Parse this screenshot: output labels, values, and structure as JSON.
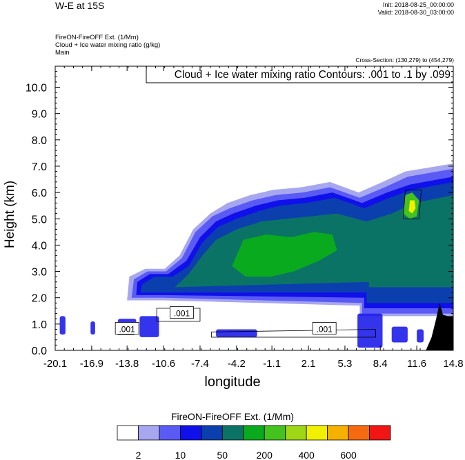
{
  "header": {
    "title": "W-E at 15S",
    "init": "Init: 2018-08-25_00:00:00",
    "valid": "Valid: 2018-08-30_03:00:00",
    "subtitle1": "FireON-FireOFF Ext.   (1/Mm)",
    "subtitle2": "Cloud + Ice water mixing ratio   (g/kg)",
    "subtitle3": "Main",
    "cross_section": "Cross-Section: (130,279) to (454,279)",
    "contour_note": "Cloud + Ice water mixing ratio Contours: .001 to .1 by .099"
  },
  "axes": {
    "ylabel": "Height (km)",
    "xlabel": "longitude",
    "yticks": [
      "0.0",
      "1.0",
      "2.0",
      "3.0",
      "4.0",
      "5.0",
      "6.0",
      "7.0",
      "8.0",
      "9.0",
      "10.0"
    ],
    "xticks": [
      "-20.1",
      "-16.9",
      "-13.8",
      "-10.6",
      "-7.4",
      "-4.2",
      "-1.1",
      "2.1",
      "5.3",
      "8.4",
      "11.6",
      "14.8"
    ]
  },
  "contour_labels": [
    ".001",
    ".001",
    ".001"
  ],
  "colorbar": {
    "title": "FireON-FireOFF Ext.  (1/Mm)",
    "colors": [
      "#ffffff",
      "#a7a7f0",
      "#5a5af5",
      "#1010ea",
      "#0b3fae",
      "#0b7366",
      "#0aaa1e",
      "#44c21e",
      "#9ed716",
      "#f0f000",
      "#f5b000",
      "#f56a10",
      "#f01616"
    ],
    "labels": [
      "2",
      "10",
      "50",
      "200",
      "400",
      "600"
    ]
  },
  "chart_data": {
    "type": "heatmap",
    "title": "W-E at 15S",
    "xlabel": "longitude",
    "ylabel": "Height (km)",
    "xlim": [
      -20.1,
      14.8
    ],
    "ylim": [
      0,
      10.8
    ],
    "x_ticks": [
      -20.1,
      -16.9,
      -13.8,
      -10.6,
      -7.4,
      -4.2,
      -1.1,
      2.1,
      5.3,
      8.4,
      11.6,
      14.8
    ],
    "y_ticks": [
      0,
      1,
      2,
      3,
      4,
      5,
      6,
      7,
      8,
      9,
      10
    ],
    "levels": [
      2,
      10,
      50,
      200,
      400,
      600
    ],
    "series": [
      {
        "name": "FireON-FireOFF Ext.",
        "values": [
          {
            "level": 1,
            "polygon": [
              [
                -13.8,
                1.9
              ],
              [
                -13.6,
                2.8
              ],
              [
                -12.2,
                3.1
              ],
              [
                -10.5,
                3.1
              ],
              [
                -9.2,
                3.6
              ],
              [
                -8.0,
                4.6
              ],
              [
                -6.5,
                5.2
              ],
              [
                -5.0,
                5.6
              ],
              [
                -3.0,
                5.9
              ],
              [
                -1.0,
                6.1
              ],
              [
                1.5,
                6.2
              ],
              [
                4.0,
                6.4
              ],
              [
                6.5,
                6.0
              ],
              [
                8.6,
                6.4
              ],
              [
                10.6,
                6.8
              ],
              [
                12.0,
                6.9
              ],
              [
                14.8,
                7.1
              ],
              [
                14.8,
                1.3
              ],
              [
                6.6,
                1.3
              ],
              [
                6.6,
                1.7
              ],
              [
                -10.6,
                1.9
              ]
            ]
          },
          {
            "level": 2,
            "polygon": [
              [
                -13.4,
                2.0
              ],
              [
                -13.2,
                2.7
              ],
              [
                -12.0,
                3.0
              ],
              [
                -10.4,
                3.0
              ],
              [
                -9.0,
                3.5
              ],
              [
                -7.8,
                4.5
              ],
              [
                -6.3,
                5.1
              ],
              [
                -4.8,
                5.4
              ],
              [
                -2.8,
                5.7
              ],
              [
                -0.8,
                5.9
              ],
              [
                1.6,
                6.0
              ],
              [
                4.0,
                6.2
              ],
              [
                6.6,
                5.8
              ],
              [
                8.8,
                6.2
              ],
              [
                10.8,
                6.6
              ],
              [
                14.8,
                6.9
              ],
              [
                14.8,
                1.4
              ],
              [
                6.8,
                1.4
              ],
              [
                6.8,
                1.8
              ],
              [
                -10.6,
                2.0
              ]
            ]
          },
          {
            "level": 3,
            "polygon": [
              [
                -13.0,
                2.1
              ],
              [
                -12.9,
                2.6
              ],
              [
                -11.8,
                2.9
              ],
              [
                -10.2,
                2.9
              ],
              [
                -8.6,
                3.4
              ],
              [
                -7.4,
                4.3
              ],
              [
                -6.0,
                4.9
              ],
              [
                -4.5,
                5.2
              ],
              [
                -2.5,
                5.5
              ],
              [
                -0.6,
                5.7
              ],
              [
                1.8,
                5.8
              ],
              [
                4.2,
                6.0
              ],
              [
                6.8,
                5.6
              ],
              [
                9.0,
                6.0
              ],
              [
                11.0,
                6.3
              ],
              [
                14.8,
                6.6
              ],
              [
                14.8,
                1.6
              ],
              [
                7.0,
                1.6
              ],
              [
                7.0,
                2.0
              ],
              [
                -10.4,
                2.1
              ]
            ]
          },
          {
            "level": 4,
            "polygon": [
              [
                -12.6,
                2.2
              ],
              [
                -12.5,
                2.5
              ],
              [
                -11.4,
                2.8
              ],
              [
                -9.8,
                2.8
              ],
              [
                -8.4,
                3.2
              ],
              [
                -7.2,
                4.1
              ],
              [
                -5.8,
                4.7
              ],
              [
                -4.2,
                5.0
              ],
              [
                -2.2,
                5.3
              ],
              [
                -0.4,
                5.5
              ],
              [
                2.0,
                5.6
              ],
              [
                4.4,
                5.8
              ],
              [
                7.0,
                5.4
              ],
              [
                9.2,
                5.8
              ],
              [
                11.2,
                6.1
              ],
              [
                14.8,
                6.4
              ],
              [
                14.8,
                1.8
              ],
              [
                7.2,
                1.8
              ],
              [
                7.2,
                2.2
              ],
              [
                -10.2,
                2.2
              ]
            ]
          },
          {
            "level": 5,
            "polygon": [
              [
                -9.6,
                2.4
              ],
              [
                -8.4,
                2.9
              ],
              [
                -7.2,
                3.6
              ],
              [
                -6.0,
                4.2
              ],
              [
                -4.2,
                4.6
              ],
              [
                -2.0,
                4.9
              ],
              [
                0.2,
                5.0
              ],
              [
                2.4,
                5.1
              ],
              [
                4.6,
                5.2
              ],
              [
                7.2,
                4.9
              ],
              [
                9.4,
                5.2
              ],
              [
                11.4,
                5.6
              ],
              [
                14.8,
                5.9
              ],
              [
                14.8,
                2.4
              ],
              [
                7.4,
                2.4
              ],
              [
                7.4,
                2.6
              ]
            ]
          },
          {
            "level": 6,
            "polygon": [
              [
                -4.6,
                3.2
              ],
              [
                -3.6,
                4.2
              ],
              [
                -1.6,
                4.4
              ],
              [
                0.6,
                4.3
              ],
              [
                2.6,
                4.5
              ],
              [
                4.2,
                4.4
              ],
              [
                4.6,
                3.8
              ],
              [
                3.0,
                3.4
              ],
              [
                0.8,
                3.0
              ],
              [
                -1.2,
                2.8
              ],
              [
                -3.4,
                2.8
              ]
            ]
          },
          {
            "level": 7,
            "polygon": [
              [
                10.4,
                5.2
              ],
              [
                10.6,
                5.9
              ],
              [
                11.2,
                6.0
              ],
              [
                11.8,
                5.7
              ],
              [
                11.6,
                5.1
              ],
              [
                11.0,
                5.0
              ]
            ]
          },
          {
            "level": 9,
            "polygon": [
              [
                10.9,
                5.3
              ],
              [
                11.0,
                5.7
              ],
              [
                11.4,
                5.7
              ],
              [
                11.5,
                5.4
              ],
              [
                11.2,
                5.2
              ]
            ]
          }
        ]
      },
      {
        "name": "Cloud + Ice water mixing ratio",
        "values": [
          {
            "level": 0.001,
            "label_at": [
              -9.0,
              1.4
            ],
            "polygon": [
              [
                -11.2,
                1.1
              ],
              [
                -11.2,
                1.6
              ],
              [
                -7.4,
                1.6
              ],
              [
                -7.4,
                1.1
              ]
            ]
          },
          {
            "level": 0.001,
            "label_at": [
              -13.8,
              0.8
            ],
            "polygon": [
              [
                -14.6,
                0.6
              ],
              [
                -14.6,
                1.0
              ],
              [
                -13.2,
                1.0
              ],
              [
                -13.2,
                0.6
              ]
            ]
          },
          {
            "level": 0.001,
            "label_at": [
              3.5,
              0.8
            ],
            "polygon": [
              [
                -6.4,
                0.7
              ],
              [
                1.5,
                0.75
              ],
              [
                8.0,
                0.8
              ],
              [
                8.0,
                0.5
              ],
              [
                -6.4,
                0.5
              ]
            ]
          },
          {
            "level": 0.001,
            "polygon": [
              [
                10.4,
                5.0
              ],
              [
                10.6,
                6.1
              ],
              [
                12.0,
                6.1
              ],
              [
                11.8,
                5.0
              ]
            ]
          }
        ]
      }
    ]
  }
}
